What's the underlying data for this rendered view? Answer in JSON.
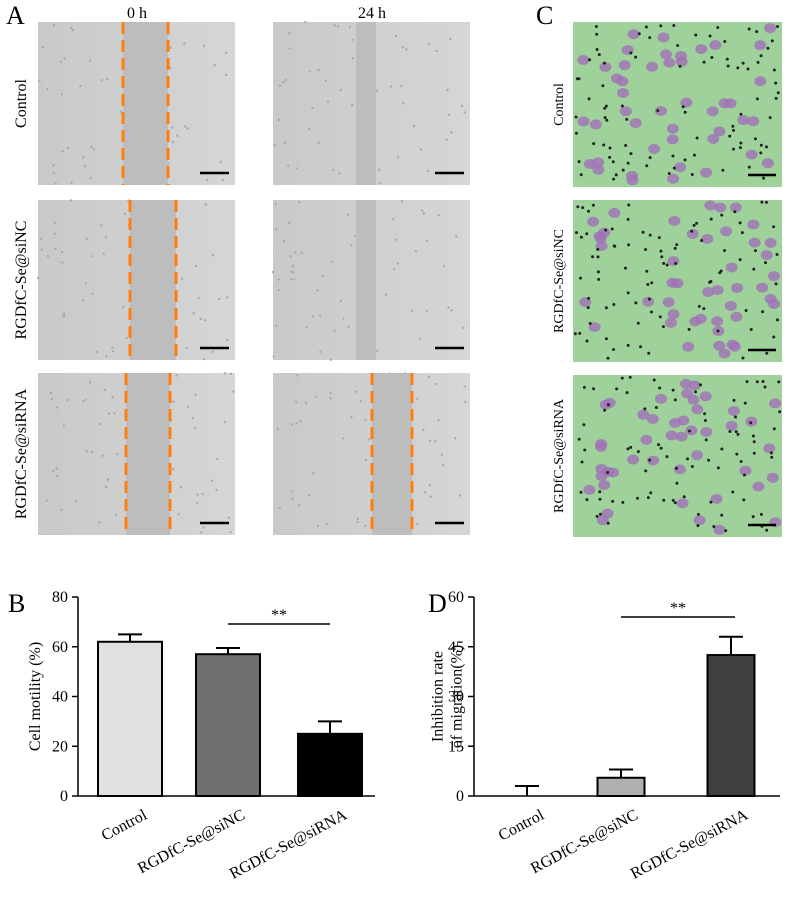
{
  "figure": {
    "panel_labels": [
      "A",
      "B",
      "C",
      "D"
    ],
    "time_labels": [
      "0 h",
      "24 h"
    ],
    "row_labels_a": [
      "Control",
      "RGDfC-Se@siNC",
      "RGDfC-Se@siRNA"
    ],
    "row_labels_c": [
      "Control",
      "RGDfC-Se@siNC",
      "RGDfC-Se@siRNA"
    ]
  },
  "chart_data": [
    {
      "type": "bar",
      "ylabel": [
        "Cell motility (%)"
      ],
      "categories": [
        "Control",
        "RGDfC-Se@siNC",
        "RGDfC-Se@siRNA"
      ],
      "values": [
        62,
        57,
        25
      ],
      "errors": [
        3,
        2.5,
        5
      ],
      "colors": [
        "#e0e0e0",
        "#707070",
        "#000000"
      ],
      "ylim": [
        0,
        80
      ],
      "yticks": [
        0,
        20,
        40,
        60,
        80
      ],
      "annotation": "**"
    },
    {
      "type": "bar",
      "ylabel": [
        "Inhibition rate",
        "of migration(%)"
      ],
      "categories": [
        "Control",
        "RGDfC-Se@siNC",
        "RGDfC-Se@siRNA"
      ],
      "values": [
        0,
        5.5,
        42.5
      ],
      "errors": [
        3,
        2.5,
        5.5
      ],
      "colors": [
        "#ffffff",
        "#b0b0b0",
        "#404040"
      ],
      "ylim": [
        0,
        60
      ],
      "yticks": [
        0,
        15,
        30,
        45,
        60
      ],
      "annotation": "**"
    }
  ]
}
